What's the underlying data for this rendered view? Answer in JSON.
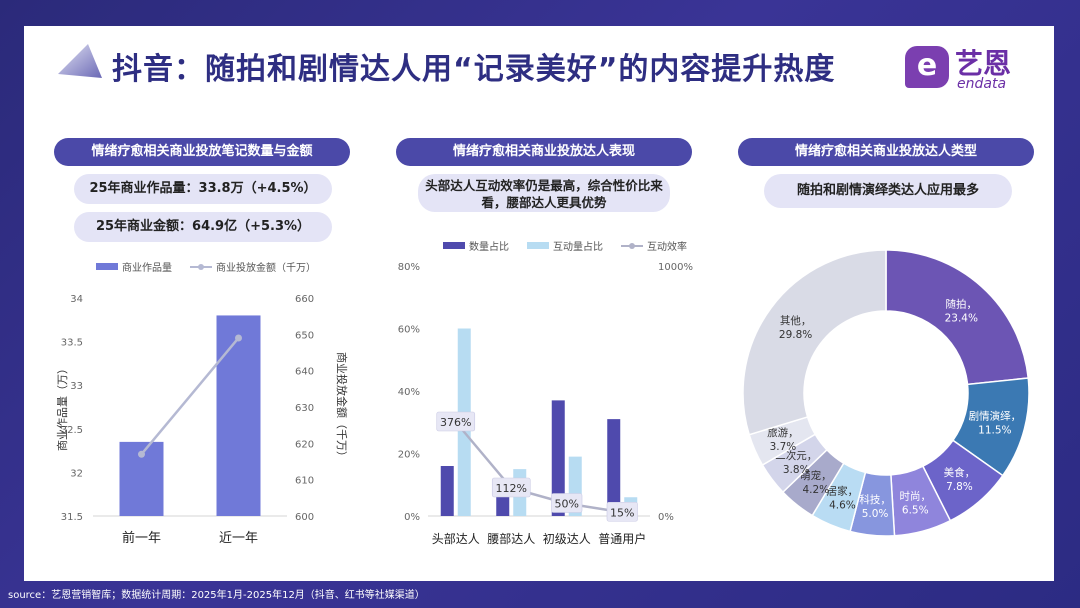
{
  "header": {
    "title": "抖音：随拍和剧情达人用“记录美好”的内容提升热度",
    "logo_cn": "艺恩",
    "logo_en": "endata"
  },
  "left": {
    "heading": "情绪疗愈相关商业投放笔记数量与金额",
    "stat1": "25年商业作品量：33.8万（+4.5%）",
    "stat2": "25年商业金额：64.9亿（+5.3%）",
    "legend_bar": "商业作品量",
    "legend_line": "商业投放金额（千万）",
    "y1_title": "商业作品量（万）",
    "y2_title": "商业投放金额（千万）"
  },
  "middle": {
    "heading": "情绪疗愈相关商业投放达人表现",
    "note": "头部达人互动效率仍是最高，综合性价比来看，腰部达人更具优势",
    "legend": [
      "数量占比",
      "互动量占比",
      "互动效率"
    ]
  },
  "right": {
    "heading": "情绪疗愈相关商业投放达人类型",
    "note": "随拍和剧情演绎类达人应用最多"
  },
  "footer": "source：艺恩营销智库；数据统计周期：2025年1月-2025年12月（抖音、红书等社媒渠道）",
  "colors": {
    "bar": "#7079d8",
    "line": "#b5b9d3",
    "count": "#4f4aad",
    "interact": "#b7dcf2",
    "efficiency": "#b0b2c8",
    "label_box": "#e7e7f5"
  },
  "chart_data": [
    {
      "type": "bar",
      "categories": [
        "前一年",
        "近一年"
      ],
      "series": [
        {
          "name": "商业作品量",
          "axis": "left",
          "values": [
            32.35,
            33.8
          ]
        },
        {
          "name": "商业投放金额（千万）",
          "axis": "right",
          "type": "line",
          "values": [
            617,
            649
          ]
        }
      ],
      "ylabel": "商业作品量（万）",
      "ylabel_right": "商业投放金额（千万）",
      "ylim": [
        31.5,
        34
      ],
      "ylim_right": [
        600,
        660
      ],
      "yticks": [
        "31.5",
        "32",
        "32.5",
        "33",
        "33.5",
        "34"
      ],
      "yticks_right": [
        "600",
        "610",
        "620",
        "630",
        "640",
        "650",
        "660"
      ],
      "grid": false
    },
    {
      "type": "bar",
      "categories": [
        "头部达人",
        "腰部达人",
        "初级达人",
        "普通用户"
      ],
      "series": [
        {
          "name": "数量占比",
          "axis": "left",
          "values": [
            16,
            9,
            37,
            31
          ]
        },
        {
          "name": "互动量占比",
          "axis": "left",
          "values": [
            60,
            15,
            19,
            6
          ]
        },
        {
          "name": "互动效率",
          "axis": "right",
          "type": "line",
          "values": [
            376,
            112,
            50,
            15
          ],
          "labels": [
            "376%",
            "112%",
            "50%",
            "15%"
          ]
        }
      ],
      "ylim": [
        0,
        80
      ],
      "ylim_right": [
        0,
        1000
      ],
      "yticks": [
        "0%",
        "20%",
        "40%",
        "60%",
        "80%"
      ],
      "yticks_right": [
        "0%",
        "1000%"
      ],
      "grid": false
    },
    {
      "type": "pie",
      "donut": true,
      "labels": [
        "随拍",
        "剧情演绎",
        "美食",
        "时尚",
        "科技",
        "居家",
        "萌宠",
        "二次元",
        "旅游",
        "其他"
      ],
      "values": [
        23.4,
        11.5,
        7.8,
        6.5,
        5.0,
        4.6,
        4.2,
        3.8,
        3.7,
        29.8
      ],
      "value_labels": [
        "23.4%",
        "11.5%",
        "7.8%",
        "6.5%",
        "5.0%",
        "4.6%",
        "4.2%",
        "3.8%",
        "3.7%",
        "29.8%"
      ],
      "colors": [
        "#6c55b4",
        "#3b79b3",
        "#6c64c9",
        "#8f85dc",
        "#8796de",
        "#b9dcf3",
        "#a8aacb",
        "#d3d5ea",
        "#e4e6f0",
        "#d9dbe6"
      ],
      "label_colors": [
        "#fff",
        "#fff",
        "#fff",
        "#fff",
        "#fff",
        "#333",
        "#333",
        "#333",
        "#333",
        "#333"
      ]
    }
  ]
}
